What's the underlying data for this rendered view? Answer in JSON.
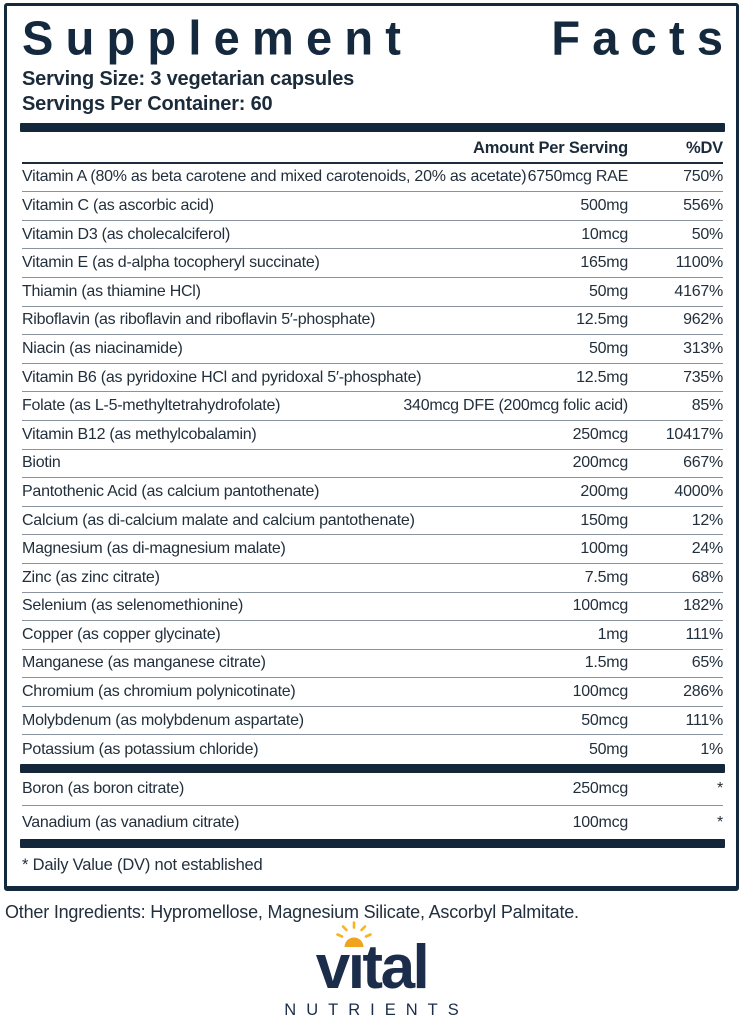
{
  "panel": {
    "title_word1": "Supplement",
    "title_word2": "Facts",
    "serving_size": "Serving Size: 3 vegetarian capsules",
    "servings_per_container": "Servings Per Container: 60",
    "columns": {
      "amount": "Amount Per Serving",
      "dv": "%DV"
    },
    "rows": [
      {
        "name": "Vitamin A (80% as beta carotene and mixed carotenoids, 20% as acetate)",
        "amount": "6750mcg RAE",
        "dv": "750%"
      },
      {
        "name": "Vitamin C (as ascorbic acid)",
        "amount": "500mg",
        "dv": "556%"
      },
      {
        "name": "Vitamin D3 (as cholecalciferol)",
        "amount": "10mcg",
        "dv": "50%"
      },
      {
        "name": "Vitamin E (as d-alpha tocopheryl succinate)",
        "amount": "165mg",
        "dv": "1100%"
      },
      {
        "name": "Thiamin (as thiamine HCl)",
        "amount": "50mg",
        "dv": "4167%"
      },
      {
        "name": "Riboflavin (as riboflavin and riboflavin 5′-phosphate)",
        "amount": "12.5mg",
        "dv": "962%"
      },
      {
        "name": "Niacin (as niacinamide)",
        "amount": "50mg",
        "dv": "313%"
      },
      {
        "name": "Vitamin B6 (as pyridoxine HCl and pyridoxal 5′-phosphate)",
        "amount": "12.5mg",
        "dv": "735%"
      },
      {
        "name": "Folate (as L-5-methyltetrahydrofolate)",
        "amount": "340mcg DFE (200mcg folic acid)",
        "dv": "85%"
      },
      {
        "name": "Vitamin B12 (as methylcobalamin)",
        "amount": "250mcg",
        "dv": "10417%"
      },
      {
        "name": "Biotin",
        "amount": "200mcg",
        "dv": "667%"
      },
      {
        "name": "Pantothenic Acid (as calcium pantothenate)",
        "amount": "200mg",
        "dv": "4000%"
      },
      {
        "name": "Calcium (as di-calcium malate and calcium pantothenate)",
        "amount": "150mg",
        "dv": "12%"
      },
      {
        "name": "Magnesium (as di-magnesium malate)",
        "amount": "100mg",
        "dv": "24%"
      },
      {
        "name": "Zinc (as zinc citrate)",
        "amount": "7.5mg",
        "dv": "68%"
      },
      {
        "name": "Selenium (as selenomethionine)",
        "amount": "100mcg",
        "dv": "182%"
      },
      {
        "name": "Copper (as copper glycinate)",
        "amount": "1mg",
        "dv": "111%"
      },
      {
        "name": "Manganese (as manganese citrate)",
        "amount": "1.5mg",
        "dv": "65%"
      },
      {
        "name": "Chromium (as chromium polynicotinate)",
        "amount": "100mcg",
        "dv": "286%"
      },
      {
        "name": "Molybdenum (as molybdenum aspartate)",
        "amount": "50mcg",
        "dv": "111%"
      },
      {
        "name": "Potassium (as potassium chloride)",
        "amount": "50mg",
        "dv": "1%"
      }
    ],
    "no_dv_rows": [
      {
        "name": "Boron (as boron citrate)",
        "amount": "250mcg",
        "dv": "*"
      },
      {
        "name": "Vanadium (as vanadium citrate)",
        "amount": "100mcg",
        "dv": "*"
      }
    ],
    "footnote": "* Daily Value (DV) not established"
  },
  "other_ingredients": "Other Ingredients: Hypromellose, Magnesium Silicate, Ascorbyl Palmitate.",
  "logo": {
    "wordmark": "vital",
    "wordmark_part1": "v",
    "wordmark_i": "ı",
    "wordmark_part2": "tal",
    "subtext": "NUTRIENTS",
    "sun_icon": "sun-icon"
  },
  "colors": {
    "navy": "#14293d",
    "logo_navy": "#1b2d4a",
    "separator": "#8a93a0",
    "sun_dome": "#f0a41e",
    "sun_rays": "#f6b51e"
  }
}
